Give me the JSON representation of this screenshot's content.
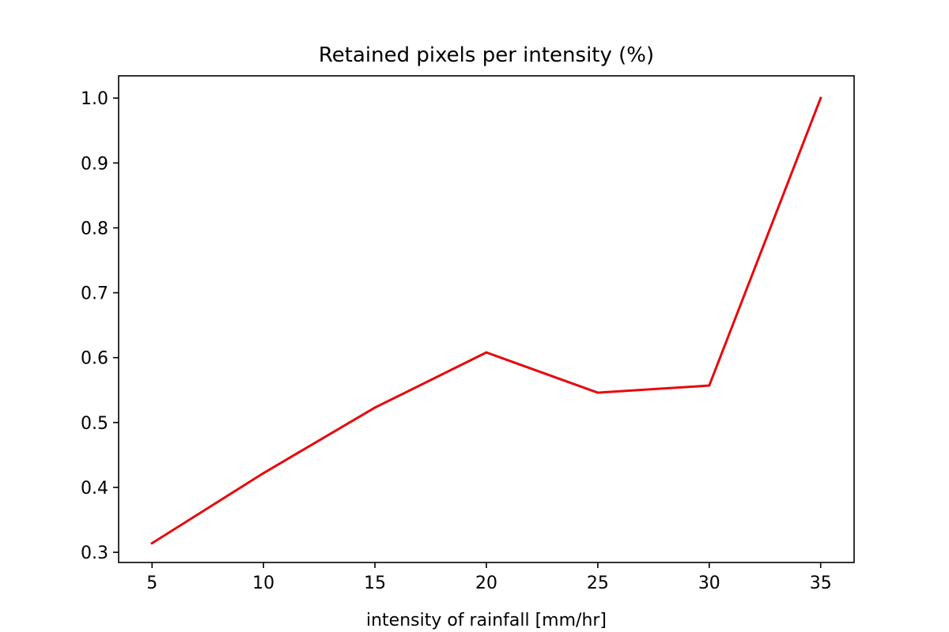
{
  "chart_data": {
    "type": "line",
    "title": "Retained pixels per intensity (%)",
    "xlabel": "intensity of rainfall [mm/hr]",
    "ylabel": "",
    "x": [
      5,
      10,
      15,
      20,
      25,
      30,
      35
    ],
    "series": [
      {
        "name": "retained pixels",
        "color": "#e8070a",
        "values": [
          0.314,
          0.422,
          0.523,
          0.608,
          0.546,
          0.557,
          1.0
        ]
      }
    ],
    "xlim": [
      3.5,
      36.5
    ],
    "ylim": [
      0.2843,
      1.0343
    ],
    "xticks": [
      5,
      10,
      15,
      20,
      25,
      30,
      35
    ],
    "xtick_labels": [
      "5",
      "10",
      "15",
      "20",
      "25",
      "30",
      "35"
    ],
    "yticks": [
      0.3,
      0.4,
      0.5,
      0.6,
      0.7,
      0.8,
      0.9,
      1.0
    ],
    "ytick_labels": [
      "0.3",
      "0.4",
      "0.5",
      "0.6",
      "0.7",
      "0.8",
      "0.9",
      "1.0"
    ],
    "grid": false,
    "legend": "none"
  }
}
